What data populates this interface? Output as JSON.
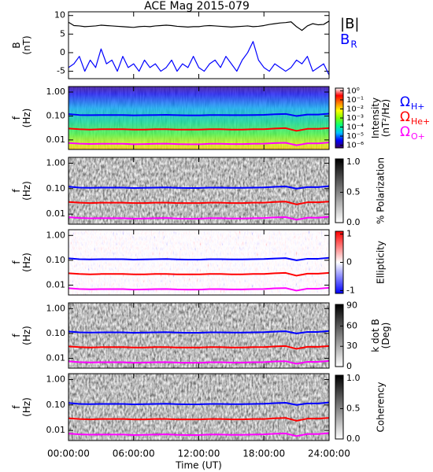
{
  "chart_data": [
    {
      "type": "line",
      "title": "ACE Mag 2015-079",
      "ylabel": [
        "B",
        "(nT)"
      ],
      "xlim": [
        0,
        24
      ],
      "xticks": [
        0,
        6,
        12,
        18,
        24
      ],
      "ylim": [
        -7,
        11
      ],
      "yticks": [
        -5,
        0,
        5,
        10
      ],
      "x": [
        0,
        0.5,
        1,
        1.5,
        2,
        2.5,
        3,
        3.5,
        4,
        4.5,
        5,
        5.5,
        6,
        6.5,
        7,
        7.5,
        8,
        8.5,
        9,
        9.5,
        10,
        10.5,
        11,
        11.5,
        12,
        12.5,
        13,
        13.5,
        14,
        14.5,
        15,
        15.5,
        16,
        16.5,
        17,
        17.5,
        18,
        18.5,
        19,
        19.5,
        20,
        20.5,
        21,
        21.5,
        22,
        22.5,
        23,
        23.5,
        24
      ],
      "series": [
        {
          "name": "|B|",
          "color": "#000000",
          "values": [
            8.2,
            7.3,
            7.2,
            7.0,
            7.1,
            7.2,
            7.4,
            7.3,
            7.2,
            7.1,
            7.0,
            6.9,
            6.8,
            7.0,
            7.1,
            7.0,
            7.2,
            7.3,
            7.4,
            7.3,
            7.1,
            7.0,
            6.9,
            7.0,
            7.0,
            7.2,
            7.3,
            7.2,
            7.1,
            7.0,
            6.9,
            7.0,
            7.1,
            7.2,
            7.0,
            7.1,
            7.3,
            7.6,
            7.8,
            8.0,
            8.1,
            8.3,
            7.0,
            6.0,
            7.2,
            7.8,
            7.5,
            7.6,
            8.5
          ]
        },
        {
          "name": "B",
          "subscript": "R",
          "color": "#0000ff",
          "values": [
            -4,
            -3,
            -1,
            -5,
            -2,
            -4,
            1,
            -3,
            -2,
            -5,
            -1,
            -4,
            -3,
            -5,
            -2,
            -4,
            -3,
            -5,
            -4,
            -2,
            -5,
            -3,
            -4,
            -1,
            -4,
            -5,
            -3,
            -2,
            -4,
            -1,
            -3,
            -5,
            -2,
            0,
            3,
            -2,
            -4,
            -5,
            -3,
            -4,
            -5,
            -4,
            -2,
            -3,
            -1,
            -5,
            -4,
            -3,
            -6
          ]
        }
      ]
    },
    {
      "type": "spectrogram",
      "ylabel": [
        "f",
        "(Hz)"
      ],
      "ylog": true,
      "xlim": [
        0,
        24
      ],
      "xticks": [
        0,
        6,
        12,
        18,
        24
      ],
      "ylim": [
        0.004,
        1.7
      ],
      "yticks": [
        {
          "value": 1,
          "label": "1.00"
        },
        {
          "value": 0.1,
          "label": "0.10"
        },
        {
          "value": 0.01,
          "label": "0.01"
        }
      ],
      "colorbar": {
        "label": [
          "Intensity",
          "(nT²/Hz)"
        ],
        "colormap": "rainbow",
        "log": true,
        "lim": [
          5e-07,
          2
        ],
        "ticks": [
          {
            "value": 1,
            "label": "10⁰"
          },
          {
            "value": 0.1,
            "label": "10⁻¹"
          },
          {
            "value": 0.01,
            "label": "10⁻²"
          },
          {
            "value": 0.001,
            "label": "10⁻³"
          },
          {
            "value": 0.0001,
            "label": "10⁻⁴"
          },
          {
            "value": 1e-05,
            "label": "10⁻⁵"
          },
          {
            "value": 1e-06,
            "label": "10⁻⁶"
          }
        ]
      },
      "x": [
        0,
        1,
        2,
        3,
        4,
        5,
        6,
        7,
        8,
        9,
        10,
        11,
        12,
        13,
        14,
        15,
        16,
        17,
        18,
        19,
        20,
        21,
        22,
        23,
        24
      ],
      "series": [
        {
          "name": "Ω",
          "subscript": "H+",
          "color": "#0000ff",
          "values": [
            0.12,
            0.11,
            0.108,
            0.11,
            0.11,
            0.11,
            0.106,
            0.108,
            0.11,
            0.112,
            0.108,
            0.106,
            0.106,
            0.11,
            0.11,
            0.108,
            0.108,
            0.11,
            0.112,
            0.118,
            0.122,
            0.1,
            0.115,
            0.115,
            0.125
          ]
        },
        {
          "name": "Ω",
          "subscript": "He+",
          "color": "#ff0000",
          "values": [
            0.03,
            0.028,
            0.027,
            0.028,
            0.028,
            0.028,
            0.027,
            0.027,
            0.028,
            0.028,
            0.027,
            0.027,
            0.027,
            0.028,
            0.028,
            0.027,
            0.027,
            0.028,
            0.028,
            0.03,
            0.031,
            0.024,
            0.029,
            0.029,
            0.031
          ]
        },
        {
          "name": "Ω",
          "subscript": "O+",
          "color": "#ff00ff",
          "values": [
            0.0075,
            0.007,
            0.0068,
            0.0069,
            0.0069,
            0.0069,
            0.0066,
            0.0067,
            0.0069,
            0.007,
            0.0067,
            0.0066,
            0.0066,
            0.0069,
            0.0069,
            0.0067,
            0.0067,
            0.0069,
            0.007,
            0.0074,
            0.0076,
            0.006,
            0.0072,
            0.0072,
            0.0078
          ]
        }
      ]
    },
    {
      "type": "spectrogram",
      "ylabel": [
        "f",
        "(Hz)"
      ],
      "ylog": true,
      "xlim": [
        0,
        24
      ],
      "xticks": [
        0,
        6,
        12,
        18,
        24
      ],
      "ylim": [
        0.004,
        1.7
      ],
      "yticks": [
        {
          "value": 1,
          "label": "1.00"
        },
        {
          "value": 0.1,
          "label": "0.10"
        },
        {
          "value": 0.01,
          "label": "0.01"
        }
      ],
      "colorbar": {
        "label": [
          "% Polarization"
        ],
        "colormap": "greys",
        "log": false,
        "lim": [
          0,
          1.05
        ],
        "ticks": [
          {
            "value": 1,
            "label": "1.0"
          },
          {
            "value": 0.5,
            "label": "0.5"
          },
          {
            "value": 0,
            "label": "0.0"
          }
        ]
      },
      "x": [
        0,
        1,
        2,
        3,
        4,
        5,
        6,
        7,
        8,
        9,
        10,
        11,
        12,
        13,
        14,
        15,
        16,
        17,
        18,
        19,
        20,
        21,
        22,
        23,
        24
      ],
      "series": [
        {
          "color": "#0000ff",
          "values": [
            0.12,
            0.11,
            0.108,
            0.11,
            0.11,
            0.11,
            0.106,
            0.108,
            0.11,
            0.112,
            0.108,
            0.106,
            0.106,
            0.11,
            0.11,
            0.108,
            0.108,
            0.11,
            0.112,
            0.118,
            0.122,
            0.1,
            0.115,
            0.115,
            0.125
          ]
        },
        {
          "color": "#ff0000",
          "values": [
            0.03,
            0.028,
            0.027,
            0.028,
            0.028,
            0.028,
            0.027,
            0.027,
            0.028,
            0.028,
            0.027,
            0.027,
            0.027,
            0.028,
            0.028,
            0.027,
            0.027,
            0.028,
            0.028,
            0.03,
            0.031,
            0.024,
            0.029,
            0.029,
            0.031
          ]
        },
        {
          "color": "#ff00ff",
          "values": [
            0.0075,
            0.007,
            0.0068,
            0.0069,
            0.0069,
            0.0069,
            0.0066,
            0.0067,
            0.0069,
            0.007,
            0.0067,
            0.0066,
            0.0066,
            0.0069,
            0.0069,
            0.0067,
            0.0067,
            0.0069,
            0.007,
            0.0074,
            0.0076,
            0.006,
            0.0072,
            0.0072,
            0.0078
          ]
        }
      ]
    },
    {
      "type": "spectrogram",
      "ylabel": [
        "f",
        "(Hz)"
      ],
      "ylog": true,
      "xlim": [
        0,
        24
      ],
      "xticks": [
        0,
        6,
        12,
        18,
        24
      ],
      "ylim": [
        0.004,
        1.7
      ],
      "yticks": [
        {
          "value": 1,
          "label": "1.00"
        },
        {
          "value": 0.1,
          "label": "0.10"
        },
        {
          "value": 0.01,
          "label": "0.01"
        }
      ],
      "colorbar": {
        "label": [
          "Ellipticity"
        ],
        "colormap": "bwr",
        "log": false,
        "lim": [
          -1.1,
          1.1
        ],
        "ticks": [
          1,
          0,
          -1
        ]
      },
      "x": [
        0,
        1,
        2,
        3,
        4,
        5,
        6,
        7,
        8,
        9,
        10,
        11,
        12,
        13,
        14,
        15,
        16,
        17,
        18,
        19,
        20,
        21,
        22,
        23,
        24
      ],
      "series": [
        {
          "color": "#0000ff",
          "values": [
            0.12,
            0.11,
            0.108,
            0.11,
            0.11,
            0.11,
            0.106,
            0.108,
            0.11,
            0.112,
            0.108,
            0.106,
            0.106,
            0.11,
            0.11,
            0.108,
            0.108,
            0.11,
            0.112,
            0.118,
            0.122,
            0.1,
            0.115,
            0.115,
            0.125
          ]
        },
        {
          "color": "#ff0000",
          "values": [
            0.03,
            0.028,
            0.027,
            0.028,
            0.028,
            0.028,
            0.027,
            0.027,
            0.028,
            0.028,
            0.027,
            0.027,
            0.027,
            0.028,
            0.028,
            0.027,
            0.027,
            0.028,
            0.028,
            0.03,
            0.031,
            0.024,
            0.029,
            0.029,
            0.031
          ]
        },
        {
          "color": "#ff00ff",
          "values": [
            0.0075,
            0.007,
            0.0068,
            0.0069,
            0.0069,
            0.0069,
            0.0066,
            0.0067,
            0.0069,
            0.007,
            0.0067,
            0.0066,
            0.0066,
            0.0069,
            0.0069,
            0.0067,
            0.0067,
            0.0069,
            0.007,
            0.0074,
            0.0076,
            0.006,
            0.0072,
            0.0072,
            0.0078
          ]
        }
      ]
    },
    {
      "type": "spectrogram",
      "ylabel": [
        "f",
        "(Hz)"
      ],
      "ylog": true,
      "xlim": [
        0,
        24
      ],
      "xticks": [
        0,
        6,
        12,
        18,
        24
      ],
      "ylim": [
        0.004,
        1.7
      ],
      "yticks": [
        {
          "value": 1,
          "label": "1.00"
        },
        {
          "value": 0.1,
          "label": "0.10"
        },
        {
          "value": 0.01,
          "label": "0.01"
        }
      ],
      "colorbar": {
        "label": [
          "k dot B",
          "(Deg)"
        ],
        "colormap": "greys",
        "log": false,
        "lim": [
          0,
          92
        ],
        "ticks": [
          90,
          60,
          30,
          0
        ]
      },
      "x": [
        0,
        1,
        2,
        3,
        4,
        5,
        6,
        7,
        8,
        9,
        10,
        11,
        12,
        13,
        14,
        15,
        16,
        17,
        18,
        19,
        20,
        21,
        22,
        23,
        24
      ],
      "series": [
        {
          "color": "#0000ff",
          "values": [
            0.12,
            0.11,
            0.108,
            0.11,
            0.11,
            0.11,
            0.106,
            0.108,
            0.11,
            0.112,
            0.108,
            0.106,
            0.106,
            0.11,
            0.11,
            0.108,
            0.108,
            0.11,
            0.112,
            0.118,
            0.122,
            0.1,
            0.115,
            0.115,
            0.125
          ]
        },
        {
          "color": "#ff0000",
          "values": [
            0.03,
            0.028,
            0.027,
            0.028,
            0.028,
            0.028,
            0.027,
            0.027,
            0.028,
            0.028,
            0.027,
            0.027,
            0.027,
            0.028,
            0.028,
            0.027,
            0.027,
            0.028,
            0.028,
            0.03,
            0.031,
            0.024,
            0.029,
            0.029,
            0.031
          ]
        },
        {
          "color": "#ff00ff",
          "values": [
            0.0075,
            0.007,
            0.0068,
            0.0069,
            0.0069,
            0.0069,
            0.0066,
            0.0067,
            0.0069,
            0.007,
            0.0067,
            0.0066,
            0.0066,
            0.0069,
            0.0069,
            0.0067,
            0.0067,
            0.0069,
            0.007,
            0.0074,
            0.0076,
            0.006,
            0.0072,
            0.0072,
            0.0078
          ]
        }
      ]
    },
    {
      "type": "spectrogram",
      "ylabel": [
        "f",
        "(Hz)"
      ],
      "ylog": true,
      "xlabel": "Time (UT)",
      "xlim": [
        0,
        24
      ],
      "ylim": [
        0.004,
        1.7
      ],
      "xticks": [
        {
          "value": 0,
          "label": "00:00:00"
        },
        {
          "value": 6,
          "label": "06:00:00"
        },
        {
          "value": 12,
          "label": "12:00:00"
        },
        {
          "value": 18,
          "label": "18:00:00"
        },
        {
          "value": 24,
          "label": "24:00:00"
        }
      ],
      "yticks": [
        {
          "value": 1,
          "label": "1.00"
        },
        {
          "value": 0.1,
          "label": "0.10"
        },
        {
          "value": 0.01,
          "label": "0.01"
        }
      ],
      "colorbar": {
        "label": [
          "Coherency"
        ],
        "colormap": "greys",
        "log": false,
        "lim": [
          0,
          1.05
        ],
        "ticks": [
          {
            "value": 1,
            "label": "1.0"
          },
          {
            "value": 0.5,
            "label": "0.5"
          },
          {
            "value": 0,
            "label": "0.0"
          }
        ]
      },
      "x": [
        0,
        1,
        2,
        3,
        4,
        5,
        6,
        7,
        8,
        9,
        10,
        11,
        12,
        13,
        14,
        15,
        16,
        17,
        18,
        19,
        20,
        21,
        22,
        23,
        24
      ],
      "series": [
        {
          "color": "#0000ff",
          "values": [
            0.12,
            0.11,
            0.108,
            0.11,
            0.11,
            0.11,
            0.106,
            0.108,
            0.11,
            0.112,
            0.108,
            0.106,
            0.106,
            0.11,
            0.11,
            0.108,
            0.108,
            0.11,
            0.112,
            0.118,
            0.122,
            0.1,
            0.115,
            0.115,
            0.125
          ]
        },
        {
          "color": "#ff0000",
          "values": [
            0.03,
            0.028,
            0.027,
            0.028,
            0.028,
            0.028,
            0.027,
            0.027,
            0.028,
            0.028,
            0.027,
            0.027,
            0.027,
            0.028,
            0.028,
            0.027,
            0.027,
            0.028,
            0.028,
            0.03,
            0.031,
            0.024,
            0.029,
            0.029,
            0.031
          ]
        },
        {
          "color": "#ff00ff",
          "values": [
            0.0075,
            0.007,
            0.0068,
            0.0069,
            0.0069,
            0.0069,
            0.0066,
            0.0067,
            0.0069,
            0.007,
            0.0067,
            0.0066,
            0.0066,
            0.0069,
            0.0069,
            0.0067,
            0.0067,
            0.0069,
            0.007,
            0.0074,
            0.0076,
            0.006,
            0.0072,
            0.0072,
            0.0078
          ]
        }
      ]
    }
  ]
}
